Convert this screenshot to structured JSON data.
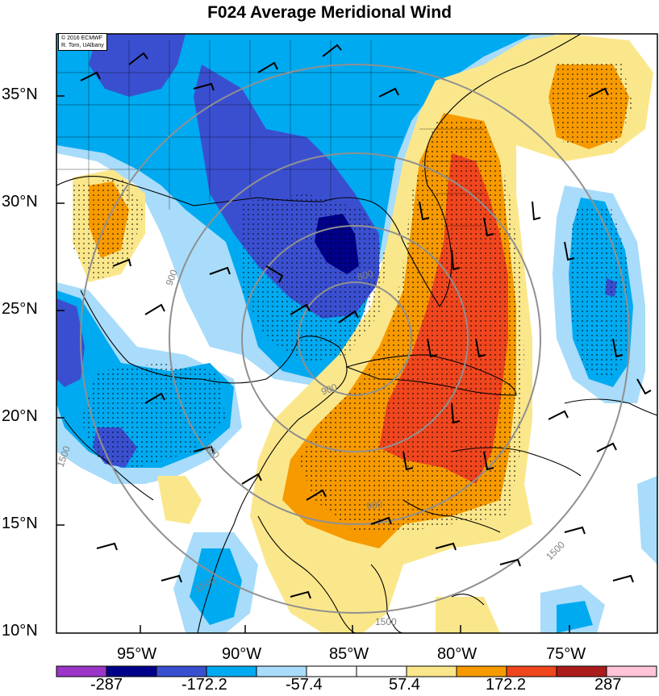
{
  "title": "F024 Average Meridional Wind",
  "credit": {
    "line1": "© 2016 ECMWF",
    "line2": "R. Torn, UAlbany"
  },
  "lat_labels": [
    "35°N",
    "30°N",
    "25°N",
    "20°N",
    "15°N",
    "10°N"
  ],
  "lon_labels": [
    "95°W",
    "90°W",
    "85°W",
    "80°W",
    "75°W"
  ],
  "contour_labels": [
    "900",
    "900",
    "900",
    "900",
    "1500",
    "1500",
    "1500",
    "1500",
    "800"
  ],
  "colorbar": {
    "labels": [
      "-287",
      "-172.2",
      "-57.4",
      "57.4",
      "172.2",
      "287"
    ],
    "colors": [
      "#9b36c9",
      "#00008a",
      "#3a4fd0",
      "#00aaf0",
      "#a8dcfa",
      "#ffffff",
      "#ffffff",
      "#fbe78b",
      "#f79a00",
      "#f0461e",
      "#ad1c1c",
      "#ffc4d8"
    ]
  },
  "colors": {
    "deep_blue": "#00008a",
    "blue": "#3a4fd0",
    "cyan": "#00aaf0",
    "light_blue": "#a8dcfa",
    "yellow": "#fbe78b",
    "orange": "#f79a00",
    "red": "#f0461e"
  }
}
